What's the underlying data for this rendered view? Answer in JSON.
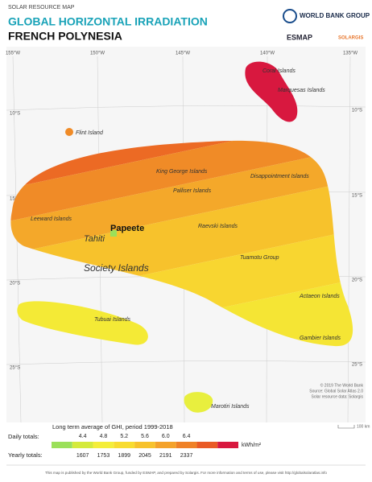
{
  "header": {
    "kicker": "SOLAR RESOURCE MAP",
    "title": "GLOBAL HORIZONTAL IRRADIATION",
    "country": "FRENCH POLYNESIA"
  },
  "logos": {
    "world_bank": "WORLD BANK GROUP",
    "esmap": "ESMAP",
    "solargis": "SOLARGIS"
  },
  "map": {
    "longitudes": [
      "155°W",
      "150°W",
      "145°W",
      "140°W",
      "135°W"
    ],
    "latitudes": [
      "10°S",
      "15°S",
      "20°S",
      "25°S"
    ],
    "places": [
      "Coral Islands",
      "Marquesas Islands",
      "Flint Island",
      "King George Islands",
      "Disappointment Islands",
      "Palliser Islands",
      "Leeward Islands",
      "Papeete",
      "Tahiti",
      "Raevski Islands",
      "Tuamotu Group",
      "Society Islands",
      "Actaeon Islands",
      "Tubuai Islands",
      "Gambier Islands",
      "Marotiri Islands"
    ],
    "credits": [
      "© 2019 The World Bank",
      "Source: Global Solar Atlas 2.0",
      "Solar resource data: Solargis"
    ],
    "scale": "100 km"
  },
  "legend": {
    "caption": "Long term average of GHI, period 1999-2018",
    "daily_title": "Daily totals:",
    "yearly_title": "Yearly totals:",
    "daily": [
      "4.4",
      "4.8",
      "5.2",
      "5.6",
      "6.0",
      "6.4"
    ],
    "yearly": [
      "1607",
      "1753",
      "1899",
      "2045",
      "2191",
      "2337"
    ],
    "unit": "kWh/m²",
    "colors": [
      "#9be05a",
      "#d4ea3c",
      "#f4ee3a",
      "#f8dc30",
      "#f7c22c",
      "#f4a22a",
      "#ef8127",
      "#e95a25",
      "#d8183f"
    ]
  },
  "footer": "This map is published by the World Bank Group, funded by ESMAP, and prepared by Solargis. For more information and terms of use, please visit http://globalsolaratlas.info"
}
